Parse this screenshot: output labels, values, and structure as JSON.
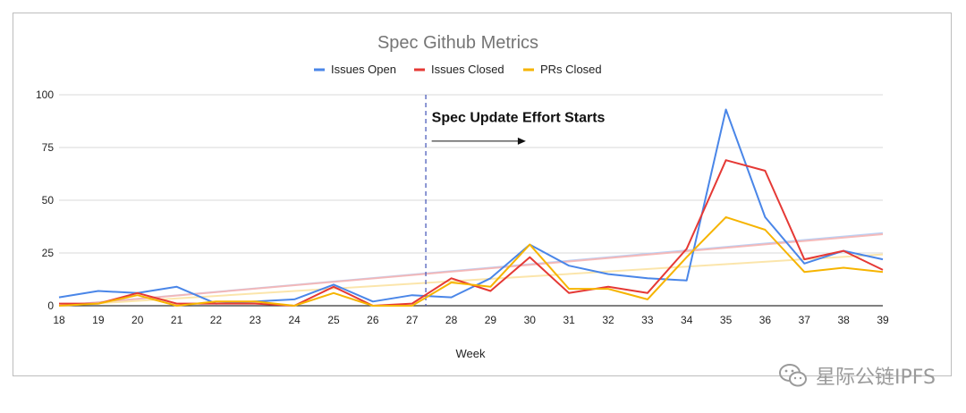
{
  "chart_data": {
    "type": "line",
    "title": "Spec Github Metrics",
    "xlabel": "Week",
    "ylabel": "",
    "x": [
      18,
      19,
      20,
      21,
      22,
      23,
      24,
      25,
      26,
      27,
      28,
      29,
      30,
      31,
      32,
      33,
      34,
      35,
      36,
      37,
      38,
      39
    ],
    "xlim": [
      18,
      39
    ],
    "ylim": [
      0,
      100
    ],
    "yticks": [
      0,
      25,
      50,
      75,
      100
    ],
    "grid": true,
    "legend_position": "top",
    "series": [
      {
        "name": "Issues Open",
        "color": "#4a86e8",
        "trend_color": "#b3cdf5",
        "values": [
          4,
          7,
          6,
          9,
          1,
          2,
          3,
          10,
          2,
          5,
          4,
          13,
          29,
          19,
          15,
          13,
          12,
          93,
          42,
          20,
          26,
          22
        ]
      },
      {
        "name": "Issues Closed",
        "color": "#e53935",
        "trend_color": "#f7b5b3",
        "values": [
          1,
          1,
          6,
          1,
          1,
          1,
          0,
          9,
          0,
          1,
          13,
          7,
          23,
          6,
          9,
          6,
          27,
          69,
          64,
          22,
          26,
          17
        ]
      },
      {
        "name": "PRs Closed",
        "color": "#f6b400",
        "trend_color": "#fbe3a3",
        "values": [
          0,
          1,
          5,
          0,
          2,
          2,
          0,
          6,
          0,
          0,
          11,
          9,
          29,
          8,
          8,
          3,
          23,
          42,
          36,
          16,
          18,
          16
        ]
      }
    ],
    "annotations": [
      {
        "text": "Spec Update Effort Starts",
        "line_at_x": 27.35,
        "arrow_from_x": 27.5,
        "arrow_to_x": 29.9,
        "arrow_at_y": 78,
        "text_at_x": 27.5,
        "text_at_y": 87
      }
    ]
  },
  "watermark": {
    "text": "星际公链IPFS",
    "icon": "wechat-icon"
  }
}
